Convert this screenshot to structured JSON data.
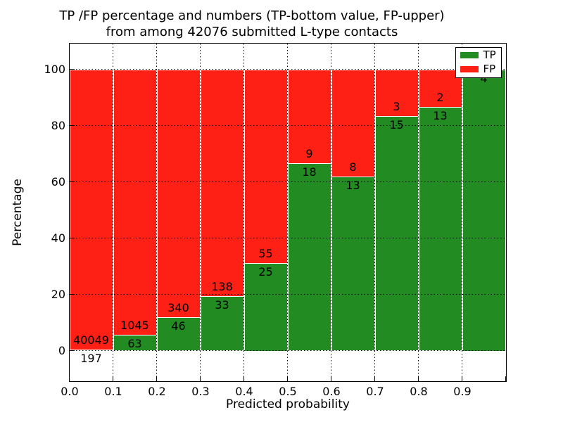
{
  "figure": {
    "title_line1": "TP /FP percentage and numbers (TP-bottom value, FP-upper)",
    "title_line2": "from among 42076 submitted L-type contacts"
  },
  "chart_data": {
    "type": "bar",
    "subtype": "stacked-percentage-histogram",
    "title": "TP /FP percentage and numbers (TP-bottom value, FP-upper) from among 42076 submitted L-type contacts",
    "xlabel": "Predicted probability",
    "ylabel": "Percentage",
    "total_submitted": 42076,
    "categories": [
      "0.0-0.1",
      "0.1-0.2",
      "0.2-0.3",
      "0.3-0.4",
      "0.4-0.5",
      "0.5-0.6",
      "0.6-0.7",
      "0.7-0.8",
      "0.8-0.9",
      "0.9-1.0"
    ],
    "series": [
      {
        "name": "TP",
        "color": "#228b22",
        "values": [
          197,
          63,
          46,
          33,
          25,
          18,
          13,
          15,
          13,
          4
        ]
      },
      {
        "name": "FP",
        "color": "#ff2015",
        "values": [
          40049,
          1045,
          340,
          138,
          55,
          9,
          8,
          3,
          2,
          0
        ]
      }
    ],
    "tp_percent": [
      0.49,
      5.69,
      11.92,
      19.3,
      31.25,
      66.67,
      61.9,
      83.33,
      86.67,
      100
    ],
    "x_tick_labels": [
      "0.0",
      "0.1",
      "0.2",
      "0.3",
      "0.4",
      "0.5",
      "0.6",
      "0.7",
      "0.8",
      "0.9"
    ],
    "y_ticks": [
      0,
      20,
      40,
      60,
      80,
      100
    ],
    "y_tick_labels": [
      "0",
      "20",
      "40",
      "60",
      "80",
      "100"
    ],
    "xlim": [
      0.0,
      1.0
    ],
    "ylim": [
      -11,
      110
    ],
    "grid": "dotted",
    "bar_edge_color": "#ffffff",
    "legend": {
      "position": "upper-right",
      "entries": [
        {
          "label": "TP",
          "color": "#228b22"
        },
        {
          "label": "FP",
          "color": "#ff2015"
        }
      ]
    }
  }
}
